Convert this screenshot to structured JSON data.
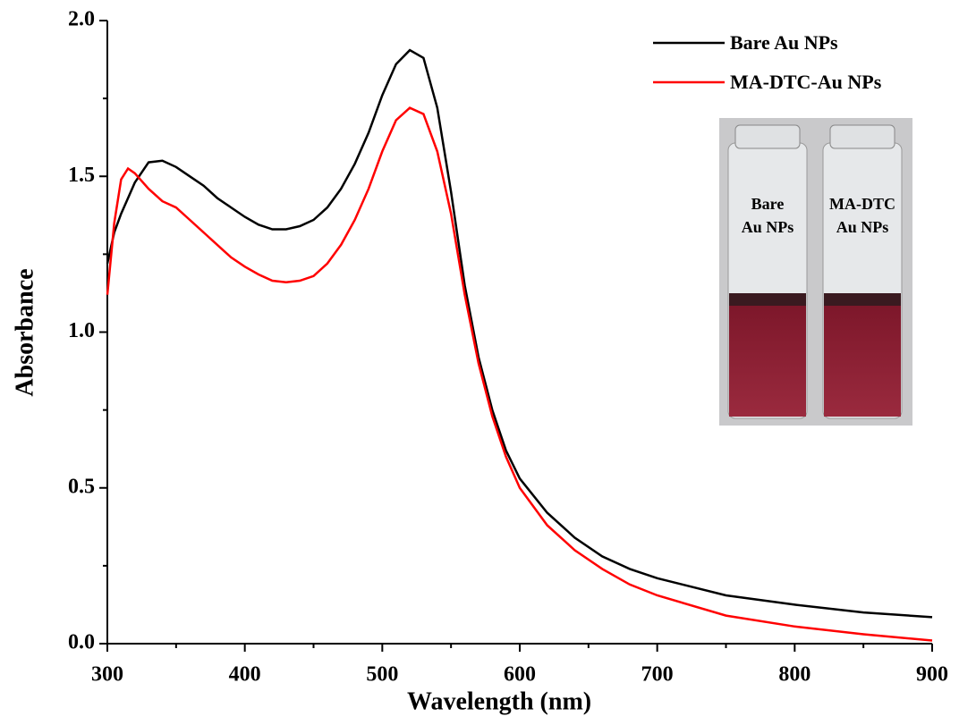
{
  "chart_data": {
    "type": "line",
    "x_label": "Wavelength (nm)",
    "y_label": "Absorbance",
    "x": [
      300,
      305,
      310,
      315,
      320,
      330,
      340,
      350,
      360,
      370,
      380,
      390,
      400,
      410,
      420,
      430,
      440,
      450,
      460,
      470,
      480,
      490,
      500,
      510,
      520,
      530,
      540,
      550,
      560,
      570,
      580,
      590,
      600,
      620,
      640,
      660,
      680,
      700,
      750,
      800,
      850,
      900
    ],
    "series": [
      {
        "name": "Bare Au NPs",
        "color": "#000000",
        "values": [
          1.22,
          1.32,
          1.38,
          1.43,
          1.48,
          1.545,
          1.55,
          1.53,
          1.5,
          1.47,
          1.43,
          1.4,
          1.37,
          1.345,
          1.33,
          1.33,
          1.34,
          1.36,
          1.4,
          1.46,
          1.54,
          1.64,
          1.76,
          1.86,
          1.905,
          1.88,
          1.72,
          1.45,
          1.15,
          0.92,
          0.75,
          0.62,
          0.53,
          0.42,
          0.34,
          0.28,
          0.24,
          0.21,
          0.155,
          0.125,
          0.1,
          0.085
        ]
      },
      {
        "name": "MA-DTC-Au NPs",
        "color": "#ff0000",
        "values": [
          1.12,
          1.35,
          1.49,
          1.525,
          1.51,
          1.46,
          1.42,
          1.4,
          1.36,
          1.32,
          1.28,
          1.24,
          1.21,
          1.185,
          1.165,
          1.16,
          1.165,
          1.18,
          1.22,
          1.28,
          1.36,
          1.46,
          1.58,
          1.68,
          1.72,
          1.7,
          1.58,
          1.38,
          1.12,
          0.9,
          0.73,
          0.6,
          0.5,
          0.38,
          0.3,
          0.24,
          0.19,
          0.155,
          0.09,
          0.055,
          0.03,
          0.01
        ]
      }
    ],
    "xlim": [
      300,
      900
    ],
    "xticks": [
      300,
      400,
      500,
      600,
      700,
      800,
      900
    ],
    "xminorticks": [
      350,
      450,
      550,
      650,
      750,
      850
    ],
    "ylim": [
      0,
      2
    ],
    "yticks": [
      {
        "value": 0,
        "label": "0.0"
      },
      0.5,
      {
        "value": 1,
        "label": "1.0"
      },
      1.5,
      {
        "value": 2,
        "label": "2.0"
      }
    ],
    "yminorticks": [
      0.25,
      0.75,
      1.25,
      1.75
    ],
    "legend": "upper right",
    "inset_labels": [
      [
        "Bare",
        "Au NPs"
      ],
      [
        "MA-DTC",
        "Au NPs"
      ]
    ]
  }
}
